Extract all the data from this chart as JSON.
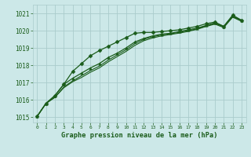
{
  "background_color": "#cce8e8",
  "grid_color": "#aacccc",
  "line_color": "#1a5c1a",
  "marker_color": "#1a5c1a",
  "xlabel": "Graphe pression niveau de la mer (hPa)",
  "xlabel_color": "#1a5c1a",
  "label_color": "#1a5c1a",
  "xlim": [
    -0.5,
    23.5
  ],
  "ylim": [
    1014.7,
    1021.5
  ],
  "yticks": [
    1015,
    1016,
    1017,
    1018,
    1019,
    1020,
    1021
  ],
  "xticks": [
    0,
    1,
    2,
    3,
    4,
    5,
    6,
    7,
    8,
    9,
    10,
    11,
    12,
    13,
    14,
    15,
    16,
    17,
    18,
    19,
    20,
    21,
    22,
    23
  ],
  "series": [
    {
      "y": [
        1015.05,
        1015.8,
        1016.25,
        1016.9,
        1017.65,
        1018.1,
        1018.55,
        1018.85,
        1019.1,
        1019.35,
        1019.6,
        1019.85,
        1019.9,
        1019.9,
        1019.95,
        1020.0,
        1020.05,
        1020.15,
        1020.25,
        1020.4,
        1020.5,
        1020.25,
        1020.9,
        1020.6
      ],
      "marker": "D",
      "markersize": 2.5,
      "linewidth": 0.9
    },
    {
      "y": [
        1015.05,
        1015.8,
        1016.25,
        1016.9,
        1017.25,
        1017.55,
        1017.85,
        1018.1,
        1018.45,
        1018.7,
        1019.0,
        1019.35,
        1019.55,
        1019.7,
        1019.8,
        1019.85,
        1019.95,
        1020.05,
        1020.15,
        1020.3,
        1020.45,
        1020.25,
        1020.85,
        1020.6
      ],
      "marker": "^",
      "markersize": 2.5,
      "linewidth": 0.9
    },
    {
      "y": [
        1015.05,
        1015.8,
        1016.15,
        1016.75,
        1017.1,
        1017.4,
        1017.7,
        1017.95,
        1018.3,
        1018.6,
        1018.9,
        1019.25,
        1019.5,
        1019.65,
        1019.75,
        1019.82,
        1019.9,
        1020.0,
        1020.1,
        1020.28,
        1020.42,
        1020.22,
        1020.82,
        1020.58
      ],
      "marker": null,
      "markersize": 0,
      "linewidth": 0.8
    },
    {
      "y": [
        1015.05,
        1015.8,
        1016.15,
        1016.7,
        1017.05,
        1017.3,
        1017.6,
        1017.85,
        1018.2,
        1018.5,
        1018.8,
        1019.15,
        1019.42,
        1019.58,
        1019.7,
        1019.78,
        1019.86,
        1019.96,
        1020.08,
        1020.24,
        1020.38,
        1020.18,
        1020.78,
        1020.54
      ],
      "marker": null,
      "markersize": 0,
      "linewidth": 0.8
    }
  ]
}
